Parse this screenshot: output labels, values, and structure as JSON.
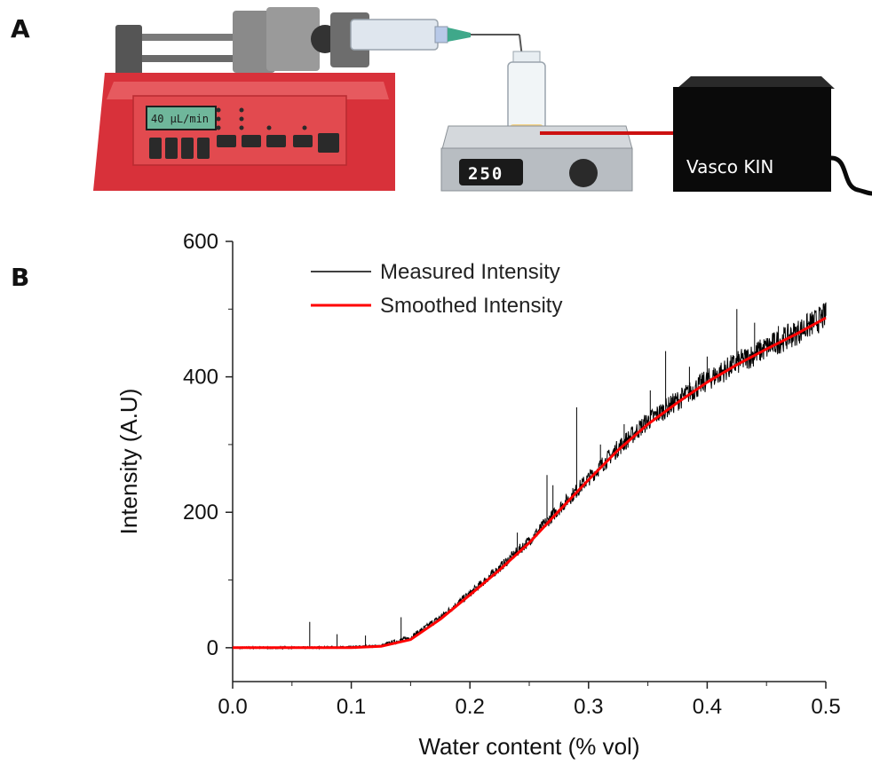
{
  "panels": {
    "a": "A",
    "b": "B"
  },
  "apparatus": {
    "pump_display": "40 µL/min",
    "stirrer_display": "250",
    "detector_label": "Vasco KIN",
    "colors": {
      "pump_body": "#d8313a",
      "pump_face": "#e24a4f",
      "laser": "#cc1111",
      "detector": "#0a0a0a"
    }
  },
  "chart_data": {
    "type": "line",
    "xlabel": "Water content (% vol)",
    "ylabel": "Intensity (A.U)",
    "xlim": [
      0.0,
      0.5
    ],
    "ylim": [
      -50,
      600
    ],
    "x_ticks": [
      0.0,
      0.1,
      0.2,
      0.3,
      0.4,
      0.5
    ],
    "x_tick_labels": [
      "0.0",
      "0.1",
      "0.2",
      "0.3",
      "0.4",
      "0.5"
    ],
    "y_ticks": [
      0,
      200,
      400,
      600
    ],
    "y_tick_labels": [
      "0",
      "200",
      "400",
      "600"
    ],
    "legend_position": "top-left",
    "grid": false,
    "series": [
      {
        "name": "Measured Intensity",
        "color": "#000000",
        "style": "noisy",
        "x": [
          0.0,
          0.05,
          0.1,
          0.125,
          0.15,
          0.175,
          0.2,
          0.225,
          0.25,
          0.275,
          0.3,
          0.325,
          0.35,
          0.375,
          0.4,
          0.425,
          0.45,
          0.475,
          0.5
        ],
        "y": [
          0,
          0,
          1,
          3,
          15,
          45,
          80,
          118,
          158,
          205,
          250,
          295,
          335,
          365,
          395,
          420,
          443,
          465,
          490
        ],
        "spikes": [
          {
            "x": 0.065,
            "y": 38
          },
          {
            "x": 0.088,
            "y": 20
          },
          {
            "x": 0.112,
            "y": 18
          },
          {
            "x": 0.142,
            "y": 45
          },
          {
            "x": 0.24,
            "y": 170
          },
          {
            "x": 0.265,
            "y": 255
          },
          {
            "x": 0.27,
            "y": 240
          },
          {
            "x": 0.29,
            "y": 355
          },
          {
            "x": 0.31,
            "y": 300
          },
          {
            "x": 0.33,
            "y": 330
          },
          {
            "x": 0.352,
            "y": 380
          },
          {
            "x": 0.365,
            "y": 438
          },
          {
            "x": 0.385,
            "y": 415
          },
          {
            "x": 0.4,
            "y": 430
          },
          {
            "x": 0.425,
            "y": 500
          },
          {
            "x": 0.44,
            "y": 480
          },
          {
            "x": 0.46,
            "y": 475
          },
          {
            "x": 0.5,
            "y": 510
          }
        ]
      },
      {
        "name": "Smoothed Intensity",
        "color": "#ff0000",
        "style": "smooth",
        "x": [
          0.0,
          0.05,
          0.1,
          0.125,
          0.15,
          0.175,
          0.2,
          0.225,
          0.25,
          0.275,
          0.3,
          0.325,
          0.35,
          0.375,
          0.4,
          0.425,
          0.45,
          0.475,
          0.5
        ],
        "y": [
          0,
          0,
          0,
          2,
          12,
          42,
          78,
          115,
          155,
          202,
          248,
          292,
          330,
          362,
          392,
          418,
          441,
          463,
          487
        ]
      }
    ]
  }
}
